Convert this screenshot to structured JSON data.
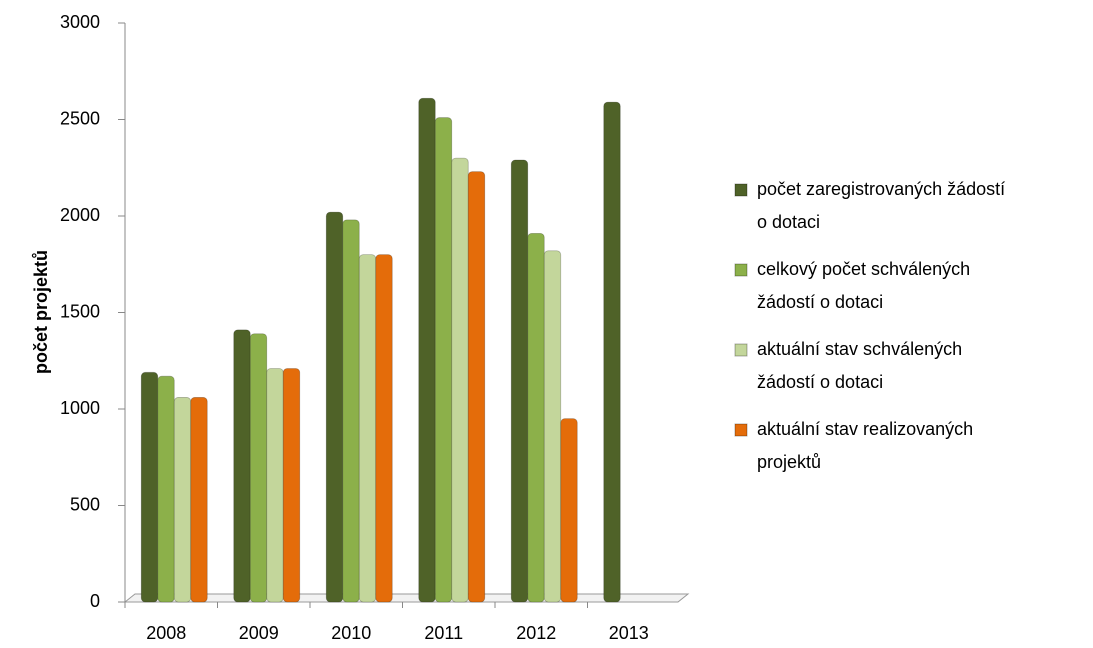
{
  "chart_data": {
    "type": "bar",
    "y_label": "počet projektů",
    "categories": [
      "2008",
      "2009",
      "2010",
      "2011",
      "2012",
      "2013"
    ],
    "series": [
      {
        "name": "počet zaregistrovaných žádostí o dotaci",
        "color": "#4f6228",
        "values": [
          1190,
          1410,
          2020,
          2610,
          2290,
          2590
        ]
      },
      {
        "name": "celkový počet schválených žádostí o dotaci",
        "color": "#8cb04a",
        "values": [
          1170,
          1390,
          1980,
          2510,
          1910,
          0
        ]
      },
      {
        "name": "aktuální stav schválených žádostí o dotaci",
        "color": "#c3d69b",
        "values": [
          1060,
          1210,
          1800,
          2300,
          1820,
          0
        ]
      },
      {
        "name": "aktuální stav realizovaných projektů",
        "color": "#e46c0a",
        "values": [
          1060,
          1210,
          1800,
          2230,
          950,
          0
        ]
      }
    ],
    "ylim": [
      0,
      3000
    ],
    "yticks": [
      0,
      500,
      1000,
      1500,
      2000,
      2500,
      3000
    ],
    "legend": "right"
  }
}
